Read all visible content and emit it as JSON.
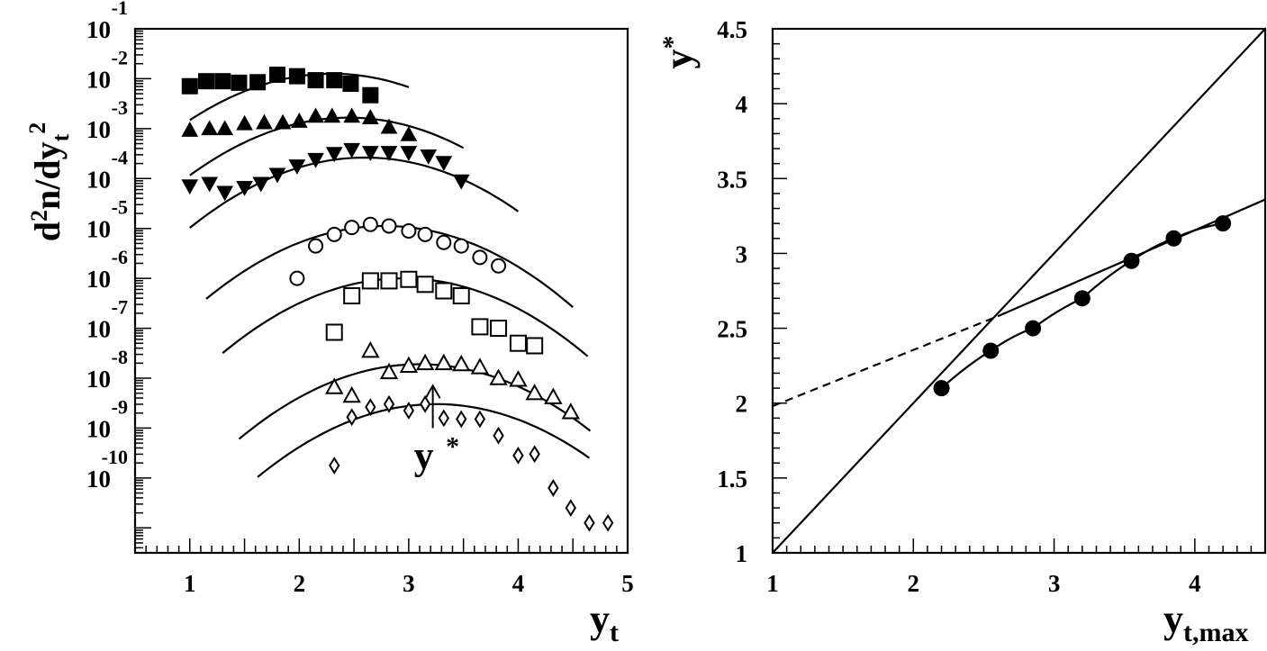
{
  "chart_data": [
    {
      "type": "scatter",
      "name": "left-panel",
      "xlabel": "y",
      "xlabel_sub": "t",
      "ylabel": "d",
      "ylabel_parts": [
        "d",
        "2",
        "n/dy",
        "t",
        "2"
      ],
      "xlim": [
        0.5,
        5.0
      ],
      "ylim": [
        -11.5,
        -1.0
      ],
      "log_y": true,
      "x_ticks": [
        "1",
        "2",
        "3",
        "4",
        "5"
      ],
      "y_tick_exponents": [
        "-1",
        "-2",
        "-3",
        "-4",
        "-5",
        "-6",
        "-7",
        "-8",
        "-9",
        "-10"
      ],
      "y_tick_base": "10",
      "annotation": {
        "text": "y",
        "sup": "*",
        "x": 3.22,
        "y_tip": -8.15,
        "y_tail": -9.0
      },
      "series": [
        {
          "marker": "filled-square",
          "x": [
            1.0,
            1.15,
            1.3,
            1.45,
            1.62,
            1.8,
            1.98,
            2.15,
            2.32,
            2.47,
            2.65
          ],
          "y": [
            -2.15,
            -2.05,
            -2.05,
            -2.08,
            -2.07,
            -1.92,
            -1.95,
            -2.03,
            -2.03,
            -2.1,
            -2.33
          ]
        },
        {
          "marker": "filled-triangle-up",
          "x": [
            1.0,
            1.18,
            1.32,
            1.5,
            1.68,
            1.85,
            2.0,
            2.15,
            2.3,
            2.48,
            2.65,
            2.82,
            3.0
          ],
          "y": [
            -3.03,
            -3.0,
            -3.0,
            -2.9,
            -2.88,
            -2.88,
            -2.85,
            -2.75,
            -2.75,
            -2.75,
            -2.78,
            -2.97,
            -3.12
          ]
        },
        {
          "marker": "filled-triangle-down",
          "x": [
            1.0,
            1.18,
            1.32,
            1.5,
            1.65,
            1.8,
            1.98,
            2.15,
            2.32,
            2.48,
            2.65,
            2.82,
            3.0,
            3.18,
            3.32,
            3.48
          ],
          "y": [
            -4.15,
            -4.1,
            -4.28,
            -4.18,
            -4.1,
            -3.92,
            -3.75,
            -3.62,
            -3.5,
            -3.42,
            -3.48,
            -3.48,
            -3.48,
            -3.55,
            -3.68,
            -4.05
          ]
        },
        {
          "marker": "open-circle",
          "x": [
            1.98,
            2.15,
            2.32,
            2.48,
            2.65,
            2.82,
            3.0,
            3.15,
            3.32,
            3.48,
            3.65,
            3.82
          ],
          "y": [
            -6.0,
            -5.35,
            -5.12,
            -4.98,
            -4.92,
            -4.95,
            -5.05,
            -5.12,
            -5.28,
            -5.35,
            -5.58,
            -5.75
          ]
        },
        {
          "marker": "open-square",
          "x": [
            2.32,
            2.48,
            2.65,
            2.82,
            3.0,
            3.15,
            3.32,
            3.48,
            3.65,
            3.82,
            4.0,
            4.15
          ],
          "y": [
            -7.08,
            -6.35,
            -6.05,
            -6.05,
            -6.02,
            -6.12,
            -6.25,
            -6.35,
            -6.97,
            -7.0,
            -7.3,
            -7.35
          ]
        },
        {
          "marker": "open-triangle-up",
          "x": [
            2.32,
            2.48,
            2.65,
            2.82,
            3.0,
            3.15,
            3.32,
            3.48,
            3.65,
            3.82,
            4.0,
            4.15,
            4.32,
            4.48
          ],
          "y": [
            -8.18,
            -8.35,
            -7.45,
            -7.88,
            -7.75,
            -7.7,
            -7.7,
            -7.72,
            -7.78,
            -8.0,
            -8.03,
            -8.3,
            -8.38,
            -8.68
          ]
        },
        {
          "marker": "open-diamond",
          "x": [
            2.32,
            2.48,
            2.65,
            2.82,
            3.0,
            3.15,
            3.32,
            3.48,
            3.65,
            3.82,
            4.0,
            4.15,
            4.32,
            4.48,
            4.65,
            4.82
          ],
          "y": [
            -9.75,
            -8.78,
            -8.58,
            -8.52,
            -8.65,
            -8.52,
            -8.8,
            -8.82,
            -8.82,
            -9.15,
            -9.55,
            -9.52,
            -10.2,
            -10.6,
            -10.9,
            -10.9
          ]
        }
      ],
      "curves": [
        {
          "x0": 1.0,
          "x1": 3.0,
          "peak_x": 2.3,
          "peak_y": -1.9,
          "curvature": 0.55
        },
        {
          "x0": 1.0,
          "x1": 3.5,
          "peak_x": 2.45,
          "peak_y": -2.78,
          "curvature": 0.55
        },
        {
          "x0": 1.0,
          "x1": 4.0,
          "peak_x": 2.6,
          "peak_y": -3.58,
          "curvature": 0.55
        },
        {
          "x0": 1.15,
          "x1": 4.5,
          "peak_x": 2.78,
          "peak_y": -4.95,
          "curvature": 0.55
        },
        {
          "x0": 1.3,
          "x1": 4.75,
          "peak_x": 2.95,
          "peak_y": -6.0,
          "curvature": 0.55
        },
        {
          "x0": 1.45,
          "x1": 4.95,
          "peak_x": 3.1,
          "peak_y": -7.72,
          "curvature": 0.55
        },
        {
          "x0": 1.62,
          "x1": 5.05,
          "peak_x": 3.25,
          "peak_y": -8.52,
          "curvature": 0.55
        }
      ]
    },
    {
      "type": "scatter",
      "name": "right-panel",
      "xlabel": "y",
      "xlabel_sub": "t,max",
      "ylabel": "y",
      "ylabel_sup": "*",
      "xlim": [
        1.0,
        4.5
      ],
      "ylim": [
        1.0,
        4.5
      ],
      "x_ticks": [
        "1",
        "2",
        "3",
        "4"
      ],
      "y_ticks": [
        "1",
        "1.5",
        "2",
        "2.5",
        "3",
        "3.5",
        "4",
        "4.5"
      ],
      "points": {
        "x": [
          2.2,
          2.55,
          2.85,
          3.2,
          3.55,
          3.85,
          4.2
        ],
        "y": [
          2.1,
          2.35,
          2.5,
          2.7,
          2.95,
          3.1,
          3.2
        ]
      },
      "diagonal": {
        "from": [
          1.0,
          1.0
        ],
        "to": [
          4.5,
          4.5
        ]
      },
      "fit_line_solid": {
        "from": [
          2.6,
          2.58
        ],
        "to": [
          4.5,
          3.36
        ]
      },
      "fit_line_dashed": {
        "from": [
          1.0,
          1.98
        ],
        "to": [
          2.6,
          2.58
        ]
      }
    }
  ]
}
